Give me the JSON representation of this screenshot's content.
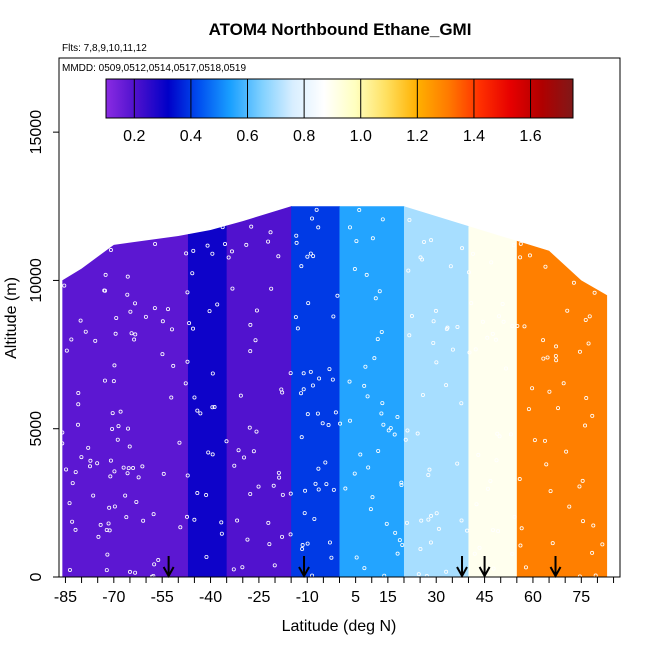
{
  "chart_data": {
    "type": "heatmap",
    "title": "ATOM4 Northbound Ethane_GMI",
    "flights_note": "Flts: 7,8,9,10,11,12",
    "dates_note": "MMDD: 0509,0512,0514,0517,0518,0519",
    "xlabel": "Latitude (deg N)",
    "ylabel": "Altitude (m)",
    "xlim": [
      -87,
      87
    ],
    "ylim": [
      0,
      17500
    ],
    "x_ticks": [
      -85,
      -70,
      -55,
      -40,
      -25,
      -10,
      5,
      15,
      30,
      45,
      60,
      75
    ],
    "y_ticks": [
      0,
      5000,
      10000,
      15000
    ],
    "colorbar": {
      "min": 0.1,
      "max": 1.75,
      "ticks": [
        0.2,
        0.4,
        0.6,
        0.8,
        1.0,
        1.2,
        1.4,
        1.6
      ],
      "tick_labels": [
        "0.2",
        "0.4",
        "0.6",
        "0.8",
        "1.0",
        "1.2",
        "1.4",
        "1.6"
      ],
      "colors": [
        "#8a2be2",
        "#4b10cc",
        "#0000c8",
        "#0050f0",
        "#1aa0ff",
        "#7fd0ff",
        "#d8eeff",
        "#ffffff",
        "#ffffc0",
        "#ffe060",
        "#ffb000",
        "#ff7a00",
        "#ff3000",
        "#e60000",
        "#b00000",
        "#801818"
      ]
    },
    "arrows_latitudes": [
      -53,
      -11,
      38,
      45,
      67
    ],
    "curtain_top": [
      {
        "lat": -86,
        "alt": 10000
      },
      {
        "lat": -80,
        "alt": 10400
      },
      {
        "lat": -70,
        "alt": 11200
      },
      {
        "lat": -50,
        "alt": 11500
      },
      {
        "lat": -40,
        "alt": 11700
      },
      {
        "lat": -30,
        "alt": 12000
      },
      {
        "lat": -15,
        "alt": 12500
      },
      {
        "lat": 0,
        "alt": 12500
      },
      {
        "lat": 20,
        "alt": 12500
      },
      {
        "lat": 35,
        "alt": 12000
      },
      {
        "lat": 50,
        "alt": 11500
      },
      {
        "lat": 65,
        "alt": 11000
      },
      {
        "lat": 75,
        "alt": 10000
      },
      {
        "lat": 83,
        "alt": 9500
      }
    ],
    "regions": [
      {
        "lat_range": [
          -86,
          -47
        ],
        "value": 0.18
      },
      {
        "lat_range": [
          -47,
          -35
        ],
        "value": 0.3
      },
      {
        "lat_range": [
          -35,
          -15
        ],
        "value": 0.2
      },
      {
        "lat_range": [
          -15,
          0
        ],
        "value": 0.4
      },
      {
        "lat_range": [
          0,
          20
        ],
        "value": 0.55
      },
      {
        "lat_range": [
          20,
          40
        ],
        "value": 0.7
      },
      {
        "lat_range": [
          40,
          55
        ],
        "value": 0.9
      },
      {
        "lat_range": [
          55,
          83
        ],
        "value": 1.3
      }
    ]
  }
}
